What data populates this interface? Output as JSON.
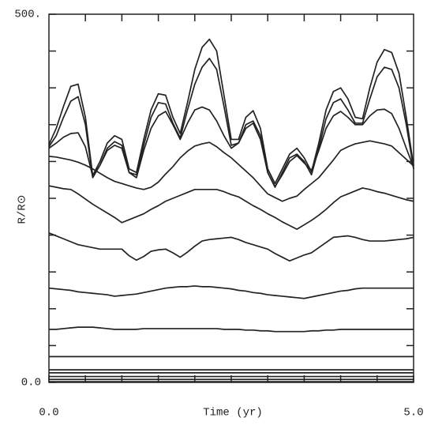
{
  "chart_data": {
    "type": "line",
    "xlabel": "Time (yr)",
    "ylabel": "R/R⊙",
    "xlim": [
      0,
      5
    ],
    "ylim": [
      0,
      500
    ],
    "xticks": [
      {
        "value": 0,
        "label": "0.0"
      },
      {
        "value": 5,
        "label": "5.0"
      }
    ],
    "xminorticks": [
      0.5,
      1,
      1.5,
      2,
      2.5,
      3,
      3.5,
      4,
      4.5
    ],
    "yticks": [
      {
        "value": 0,
        "label": "0.0"
      },
      {
        "value": 500,
        "label": "500."
      }
    ],
    "yminorticks": [
      50,
      100,
      150,
      200,
      250,
      300,
      350,
      400,
      450
    ],
    "x": [
      0,
      0.1,
      0.2,
      0.3,
      0.4,
      0.5,
      0.6,
      0.7,
      0.8,
      0.9,
      1,
      1.1,
      1.2,
      1.3,
      1.4,
      1.5,
      1.6,
      1.7,
      1.8,
      1.9,
      2,
      2.1,
      2.2,
      2.3,
      2.4,
      2.5,
      2.6,
      2.7,
      2.8,
      2.9,
      3,
      3.1,
      3.2,
      3.3,
      3.4,
      3.5,
      3.6,
      3.7,
      3.8,
      3.9,
      4,
      4.1,
      4.2,
      4.3,
      4.4,
      4.5,
      4.6,
      4.7,
      4.8,
      4.9,
      5
    ],
    "series": [
      {
        "color": "#222",
        "values": [
          323,
          345,
          375,
          402,
          405,
          360,
          281,
          300,
          325,
          335,
          330,
          290,
          285,
          330,
          370,
          392,
          390,
          360,
          338,
          380,
          425,
          455,
          466,
          450,
          390,
          330,
          330,
          360,
          369,
          345,
          290,
          270,
          290,
          310,
          318,
          305,
          286,
          325,
          370,
          395,
          400,
          385,
          360,
          358,
          400,
          435,
          452,
          448,
          420,
          360,
          294
        ]
      },
      {
        "color": "#222",
        "values": [
          320,
          335,
          360,
          382,
          388,
          350,
          278,
          295,
          318,
          327,
          322,
          285,
          282,
          322,
          360,
          380,
          378,
          352,
          332,
          370,
          405,
          428,
          440,
          425,
          375,
          322,
          325,
          350,
          355,
          335,
          285,
          265,
          285,
          305,
          310,
          300,
          282,
          318,
          358,
          380,
          385,
          370,
          352,
          352,
          385,
          415,
          428,
          425,
          400,
          350,
          290
        ]
      },
      {
        "color": "#222",
        "values": [
          318,
          325,
          333,
          338,
          339,
          320,
          280,
          295,
          315,
          322,
          318,
          285,
          278,
          315,
          345,
          362,
          368,
          350,
          330,
          352,
          370,
          374,
          370,
          355,
          335,
          318,
          325,
          345,
          352,
          330,
          285,
          266,
          282,
          300,
          308,
          298,
          288,
          315,
          345,
          362,
          368,
          360,
          350,
          350,
          362,
          370,
          371,
          365,
          345,
          318,
          292
        ]
      },
      {
        "color": "#222",
        "values": [
          307,
          306,
          304,
          302,
          299,
          295,
          290,
          284,
          278,
          273,
          270,
          267,
          264,
          262,
          265,
          272,
          283,
          293,
          305,
          314,
          321,
          324,
          326,
          320,
          312,
          305,
          296,
          287,
          278,
          267,
          256,
          251,
          246,
          250,
          253,
          262,
          270,
          278,
          290,
          302,
          315,
          320,
          324,
          326,
          328,
          326,
          324,
          321,
          312,
          303,
          294
        ]
      },
      {
        "color": "#222",
        "values": [
          267,
          265,
          263,
          262,
          256,
          249,
          242,
          236,
          230,
          224,
          217,
          221,
          225,
          229,
          235,
          240,
          246,
          250,
          254,
          258,
          262,
          262,
          262,
          262,
          259,
          255,
          252,
          246,
          240,
          235,
          229,
          224,
          218,
          213,
          208,
          214,
          220,
          227,
          235,
          244,
          252,
          256,
          260,
          264,
          262,
          259,
          257,
          254,
          251,
          248,
          246
        ]
      },
      {
        "color": "#222",
        "values": [
          203,
          199,
          195,
          191,
          187,
          185,
          183,
          181,
          181,
          181,
          181,
          172,
          166,
          171,
          178,
          180,
          181,
          176,
          170,
          177,
          185,
          192,
          194,
          195,
          196,
          197,
          194,
          190,
          187,
          184,
          181,
          175,
          170,
          165,
          169,
          173,
          176,
          183,
          190,
          197,
          198,
          199,
          197,
          194,
          192,
          192,
          192,
          193,
          194,
          195,
          197
        ]
      },
      {
        "color": "#222",
        "values": [
          128,
          127,
          126,
          125,
          123,
          122,
          121,
          120,
          119,
          117,
          118,
          119,
          120,
          122,
          124,
          126,
          128,
          129,
          130,
          130,
          131,
          130,
          130,
          129,
          128,
          127,
          125,
          124,
          122,
          121,
          119,
          118,
          117,
          116,
          115,
          114,
          116,
          118,
          120,
          122,
          124,
          125,
          127,
          128,
          128,
          128,
          128,
          128,
          128,
          128,
          128
        ]
      },
      {
        "color": "#222",
        "values": [
          72,
          72,
          73,
          74,
          75,
          75,
          75,
          74,
          73,
          72,
          72,
          72,
          72,
          73,
          73,
          73,
          73,
          73,
          73,
          73,
          73,
          73,
          73,
          73,
          72,
          72,
          72,
          71,
          71,
          70,
          70,
          69,
          69,
          69,
          69,
          69,
          70,
          70,
          71,
          71,
          72,
          72,
          72,
          72,
          72,
          72,
          72,
          72,
          72,
          72,
          72
        ]
      },
      {
        "color": "#222",
        "values": [
          35,
          35,
          35,
          35,
          35,
          35,
          35,
          35,
          35,
          35,
          35,
          35,
          35,
          35,
          35,
          35,
          35,
          35,
          35,
          35,
          35,
          35,
          35,
          35,
          35,
          35,
          35,
          35,
          35,
          35,
          35,
          35,
          35,
          35,
          35,
          35,
          35,
          35,
          35,
          35,
          35,
          35,
          35,
          35,
          35,
          35,
          35,
          35,
          35,
          35,
          35
        ]
      },
      {
        "color": "#222",
        "values": [
          17,
          17,
          17,
          17,
          17,
          17,
          17,
          17,
          17,
          17,
          17,
          17,
          17,
          17,
          17,
          17,
          17,
          17,
          17,
          17,
          17,
          17,
          17,
          17,
          17,
          17,
          17,
          17,
          17,
          17,
          17,
          17,
          17,
          17,
          17,
          17,
          17,
          17,
          17,
          17,
          17,
          17,
          17,
          17,
          17,
          17,
          17,
          17,
          17,
          17,
          17
        ]
      },
      {
        "color": "#222",
        "values": [
          13,
          13,
          13,
          13,
          13,
          13,
          13,
          13,
          13,
          13,
          13,
          13,
          13,
          13,
          13,
          13,
          13,
          13,
          13,
          13,
          13,
          13,
          13,
          13,
          13,
          13,
          13,
          13,
          13,
          13,
          13,
          13,
          13,
          13,
          13,
          13,
          13,
          13,
          13,
          13,
          13,
          13,
          13,
          13,
          13,
          13,
          13,
          13,
          13,
          13,
          13
        ]
      },
      {
        "color": "#222",
        "values": [
          8,
          8,
          8,
          8,
          8,
          8,
          8,
          8,
          8,
          8,
          8,
          8,
          8,
          8,
          8,
          8,
          8,
          8,
          8,
          8,
          8,
          8,
          8,
          8,
          8,
          8,
          8,
          8,
          8,
          8,
          8,
          8,
          8,
          8,
          8,
          8,
          8,
          8,
          8,
          8,
          8,
          8,
          8,
          8,
          8,
          8,
          8,
          8,
          8,
          8,
          8
        ]
      },
      {
        "color": "#222",
        "values": [
          4,
          4,
          4,
          4,
          4,
          4,
          4,
          4,
          4,
          4,
          4,
          4,
          4,
          4,
          4,
          4,
          4,
          4,
          4,
          4,
          4,
          4,
          4,
          4,
          4,
          4,
          4,
          4,
          4,
          4,
          4,
          4,
          4,
          4,
          4,
          4,
          4,
          4,
          4,
          4,
          4,
          4,
          4,
          4,
          4,
          4,
          4,
          4,
          4,
          4,
          4
        ]
      },
      {
        "color": "#222",
        "values": [
          1,
          1,
          1,
          1,
          1,
          1,
          1,
          1,
          1,
          1,
          1,
          1,
          1,
          1,
          1,
          1,
          1,
          1,
          1,
          1,
          1,
          1,
          1,
          1,
          1,
          1,
          1,
          1,
          1,
          1,
          1,
          1,
          1,
          1,
          1,
          1,
          1,
          1,
          1,
          1,
          1,
          1,
          1,
          1,
          1,
          1,
          1,
          1,
          1,
          1,
          1
        ]
      }
    ]
  }
}
